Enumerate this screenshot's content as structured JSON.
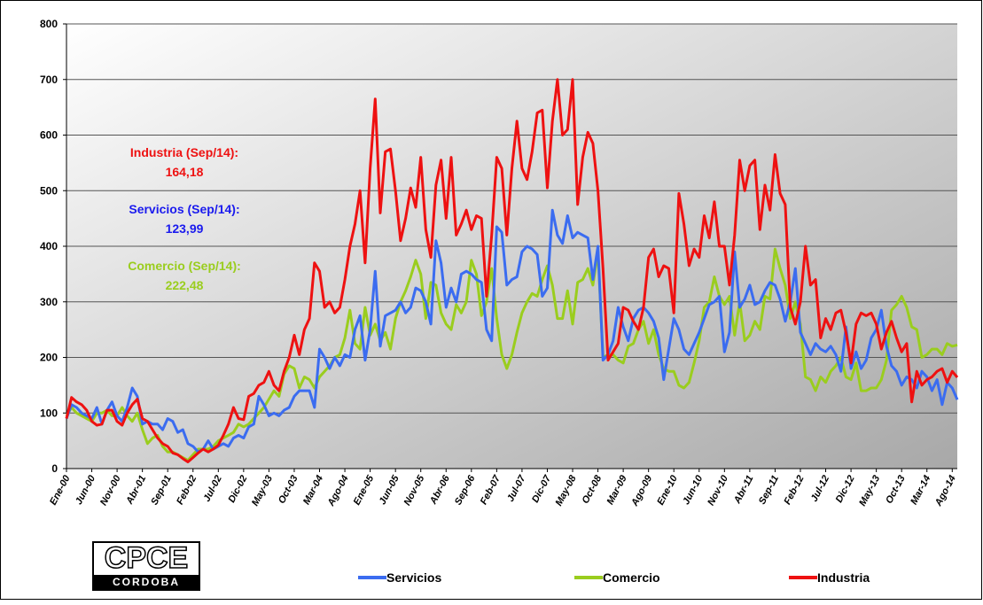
{
  "chart_data": {
    "type": "line",
    "categories": [
      "Ene-00",
      null,
      null,
      null,
      null,
      "Jun-00",
      null,
      null,
      null,
      null,
      "Nov-00",
      null,
      null,
      null,
      null,
      "Abr-01",
      null,
      null,
      null,
      null,
      "Sep-01",
      null,
      null,
      null,
      null,
      "Feb-02",
      null,
      null,
      null,
      null,
      "Jul-02",
      null,
      null,
      null,
      null,
      "Dic-02",
      null,
      null,
      null,
      null,
      "May-03",
      null,
      null,
      null,
      null,
      "Oct-03",
      null,
      null,
      null,
      null,
      "Mar-04",
      null,
      null,
      null,
      null,
      "Ago-04",
      null,
      null,
      null,
      null,
      "Ene-05",
      null,
      null,
      null,
      null,
      "Jun-05",
      null,
      null,
      null,
      null,
      "Nov-05",
      null,
      null,
      null,
      null,
      "Abr-06",
      null,
      null,
      null,
      null,
      "Sep-06",
      null,
      null,
      null,
      null,
      "Feb-07",
      null,
      null,
      null,
      null,
      "Jul-07",
      null,
      null,
      null,
      null,
      "Dic-07",
      null,
      null,
      null,
      null,
      "May-08",
      null,
      null,
      null,
      null,
      "Oct-08",
      null,
      null,
      null,
      null,
      "Mar-09",
      null,
      null,
      null,
      null,
      "Ago-09",
      null,
      null,
      null,
      null,
      "Ene-10",
      null,
      null,
      null,
      null,
      "Jun-10",
      null,
      null,
      null,
      null,
      "Nov-10",
      null,
      null,
      null,
      null,
      "Abr-11",
      null,
      null,
      null,
      null,
      "Sep-11",
      null,
      null,
      null,
      null,
      "Feb-12",
      null,
      null,
      null,
      null,
      "Jul-12",
      null,
      null,
      null,
      null,
      "Dic-12",
      null,
      null,
      null,
      null,
      "May-13",
      null,
      null,
      null,
      null,
      "Oct-13",
      null,
      null,
      null,
      null,
      "Mar-14",
      null,
      null,
      null,
      null,
      "Ago-14",
      null
    ],
    "series": [
      {
        "name": "Servicios",
        "color": "#3b6cf0",
        "values": [
          90,
          115,
          110,
          100,
          95,
          90,
          110,
          80,
          105,
          120,
          95,
          85,
          110,
          145,
          130,
          80,
          85,
          80,
          80,
          70,
          90,
          85,
          65,
          70,
          45,
          40,
          30,
          35,
          50,
          35,
          40,
          45,
          40,
          55,
          60,
          55,
          75,
          80,
          130,
          115,
          95,
          100,
          95,
          105,
          110,
          130,
          140,
          140,
          140,
          110,
          215,
          200,
          180,
          200,
          185,
          205,
          200,
          250,
          275,
          195,
          250,
          355,
          220,
          275,
          280,
          285,
          300,
          280,
          290,
          325,
          320,
          300,
          260,
          410,
          370,
          290,
          325,
          300,
          350,
          355,
          350,
          340,
          335,
          250,
          230,
          435,
          425,
          330,
          340,
          345,
          390,
          400,
          395,
          385,
          310,
          325,
          465,
          420,
          405,
          455,
          415,
          425,
          420,
          415,
          340,
          400,
          195,
          205,
          230,
          290,
          255,
          230,
          270,
          285,
          290,
          280,
          265,
          235,
          160,
          215,
          270,
          250,
          215,
          205,
          225,
          245,
          270,
          295,
          300,
          310,
          210,
          245,
          390,
          290,
          305,
          330,
          295,
          300,
          320,
          335,
          330,
          305,
          265,
          300,
          360,
          245,
          225,
          205,
          225,
          215,
          210,
          220,
          205,
          175,
          255,
          180,
          210,
          180,
          195,
          235,
          250,
          285,
          220,
          185,
          175,
          150,
          165,
          160,
          145,
          175,
          165,
          140,
          160,
          115,
          155,
          145,
          123.99
        ]
      },
      {
        "name": "Comercio",
        "color": "#9acd1e",
        "values": [
          95,
          110,
          100,
          95,
          90,
          85,
          100,
          100,
          105,
          95,
          95,
          110,
          95,
          85,
          100,
          70,
          45,
          55,
          60,
          40,
          30,
          30,
          25,
          20,
          15,
          25,
          35,
          35,
          35,
          40,
          50,
          55,
          60,
          65,
          80,
          75,
          80,
          90,
          100,
          110,
          125,
          140,
          130,
          170,
          185,
          180,
          145,
          165,
          160,
          145,
          165,
          175,
          185,
          200,
          205,
          235,
          285,
          225,
          215,
          290,
          240,
          260,
          230,
          245,
          215,
          270,
          300,
          320,
          345,
          375,
          350,
          270,
          335,
          330,
          280,
          260,
          250,
          295,
          280,
          300,
          375,
          350,
          275,
          300,
          360,
          270,
          205,
          180,
          205,
          245,
          280,
          300,
          315,
          310,
          340,
          365,
          330,
          270,
          270,
          320,
          260,
          335,
          340,
          360,
          330,
          390,
          200,
          205,
          205,
          195,
          190,
          220,
          225,
          250,
          265,
          225,
          250,
          205,
          180,
          175,
          175,
          150,
          145,
          155,
          190,
          230,
          290,
          300,
          345,
          310,
          295,
          310,
          240,
          300,
          230,
          240,
          265,
          250,
          310,
          305,
          395,
          360,
          330,
          270,
          300,
          260,
          165,
          160,
          140,
          165,
          155,
          175,
          185,
          200,
          165,
          160,
          190,
          140,
          140,
          145,
          145,
          160,
          195,
          285,
          295,
          310,
          290,
          255,
          250,
          200,
          205,
          215,
          215,
          205,
          225,
          220,
          222.48
        ]
      },
      {
        "name": "Industria",
        "color": "#ee1111",
        "values": [
          90,
          128,
          120,
          115,
          105,
          85,
          78,
          80,
          105,
          105,
          85,
          78,
          100,
          115,
          125,
          90,
          85,
          70,
          55,
          45,
          40,
          28,
          25,
          18,
          12,
          20,
          28,
          35,
          30,
          35,
          42,
          60,
          80,
          110,
          90,
          88,
          130,
          135,
          150,
          155,
          175,
          150,
          140,
          175,
          200,
          240,
          205,
          250,
          270,
          370,
          355,
          290,
          300,
          280,
          290,
          340,
          400,
          440,
          500,
          370,
          540,
          665,
          460,
          570,
          575,
          500,
          410,
          450,
          505,
          470,
          560,
          430,
          380,
          510,
          555,
          450,
          560,
          420,
          440,
          465,
          430,
          455,
          450,
          310,
          420,
          560,
          540,
          420,
          540,
          625,
          540,
          520,
          570,
          640,
          645,
          505,
          625,
          700,
          600,
          610,
          700,
          475,
          560,
          605,
          585,
          500,
          360,
          195,
          210,
          225,
          290,
          285,
          265,
          250,
          290,
          380,
          395,
          345,
          365,
          360,
          280,
          495,
          440,
          365,
          395,
          380,
          455,
          415,
          480,
          400,
          400,
          330,
          420,
          555,
          500,
          545,
          555,
          430,
          510,
          465,
          565,
          495,
          475,
          290,
          260,
          300,
          400,
          330,
          340,
          235,
          270,
          250,
          280,
          285,
          245,
          190,
          260,
          280,
          275,
          280,
          260,
          215,
          245,
          265,
          235,
          210,
          225,
          120,
          175,
          150,
          160,
          165,
          175,
          180,
          155,
          175,
          164.18
        ]
      }
    ],
    "annotations": [
      {
        "label": "Industria (Sep/14):",
        "value": "164,18",
        "color": "#ee1111"
      },
      {
        "label": "Servicios (Sep/14):",
        "value": "123,99",
        "color": "#1a1aee"
      },
      {
        "label": "Comercio (Sep/14):",
        "value": "222,48",
        "color": "#9acd1e"
      }
    ],
    "ylim": [
      0,
      800
    ],
    "yticks": [
      0,
      100,
      200,
      300,
      400,
      500,
      600,
      700,
      800
    ],
    "grid": true,
    "legend": "bottom",
    "logo": {
      "title": "CPCE",
      "subtitle": "CORDOBA"
    }
  }
}
